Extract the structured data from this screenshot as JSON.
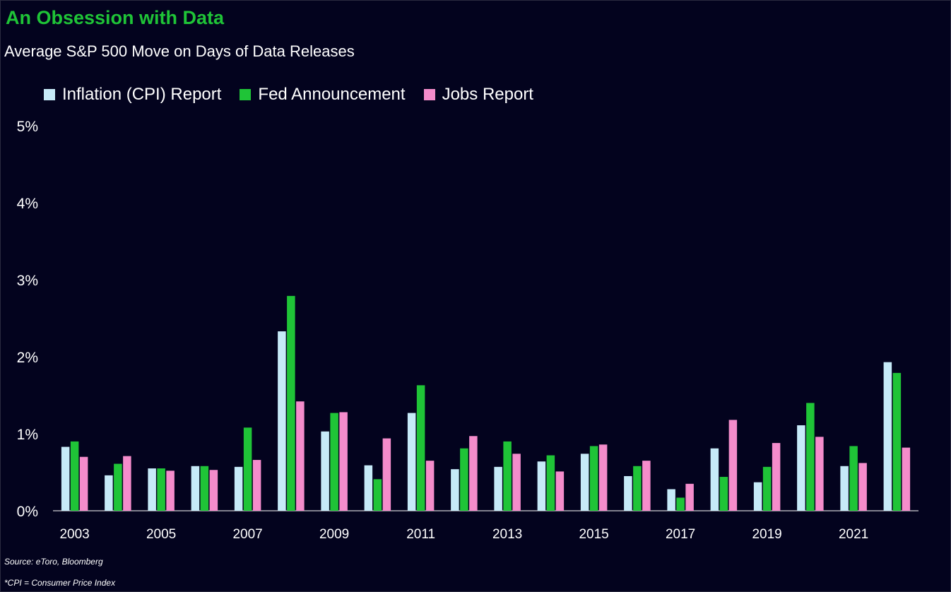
{
  "header": {
    "title": "An Obsession with Data",
    "subtitle": "Average S&P 500 Move on Days of Data Releases"
  },
  "footer": {
    "source": "Source: eToro, Bloomberg",
    "note": "*CPI = Consumer Price Index"
  },
  "colors": {
    "background": "#03031e",
    "title": "#1fc437",
    "inflation": "#c6eaf8",
    "fed": "#1fc437",
    "jobs": "#f48ccb"
  },
  "chart_data": {
    "type": "bar",
    "title": "Average S&P 500 Move on Days of Data Releases",
    "xlabel": "",
    "ylabel": "",
    "ylim": [
      0,
      5
    ],
    "yticks": [
      "0%",
      "1%",
      "2%",
      "3%",
      "4%",
      "5%"
    ],
    "ytick_values": [
      0,
      1,
      2,
      3,
      4,
      5
    ],
    "grid": false,
    "legend_position": "top-left",
    "categories": [
      "2003",
      "2004",
      "2005",
      "2006",
      "2007",
      "2008",
      "2009",
      "2010",
      "2011",
      "2012",
      "2013",
      "2014",
      "2015",
      "2016",
      "2017",
      "2018",
      "2019",
      "2020",
      "2021",
      "2022"
    ],
    "xtick_labels": [
      "2003",
      "",
      "2005",
      "",
      "2007",
      "",
      "2009",
      "",
      "2011",
      "",
      "2013",
      "",
      "2015",
      "",
      "2017",
      "",
      "2019",
      "",
      "2021",
      ""
    ],
    "series": [
      {
        "name": "Inflation (CPI) Report",
        "color": "#c6eaf8",
        "values": [
          0.83,
          0.46,
          0.55,
          0.58,
          0.57,
          2.33,
          1.03,
          0.59,
          1.27,
          0.54,
          0.57,
          0.64,
          0.74,
          0.45,
          0.28,
          0.81,
          0.37,
          1.11,
          0.58,
          1.93
        ]
      },
      {
        "name": "Fed Announcement",
        "color": "#1fc437",
        "values": [
          0.9,
          0.61,
          0.55,
          0.58,
          1.08,
          2.79,
          1.27,
          0.41,
          1.63,
          0.81,
          0.9,
          0.72,
          0.84,
          0.58,
          0.17,
          0.44,
          0.57,
          1.4,
          0.84,
          1.79
        ]
      },
      {
        "name": "Jobs Report",
        "color": "#f48ccb",
        "values": [
          0.7,
          0.71,
          0.52,
          0.53,
          0.66,
          1.42,
          1.28,
          0.94,
          0.65,
          0.97,
          0.74,
          0.51,
          0.86,
          0.65,
          0.35,
          1.18,
          0.88,
          0.96,
          0.62,
          0.82
        ]
      }
    ]
  }
}
